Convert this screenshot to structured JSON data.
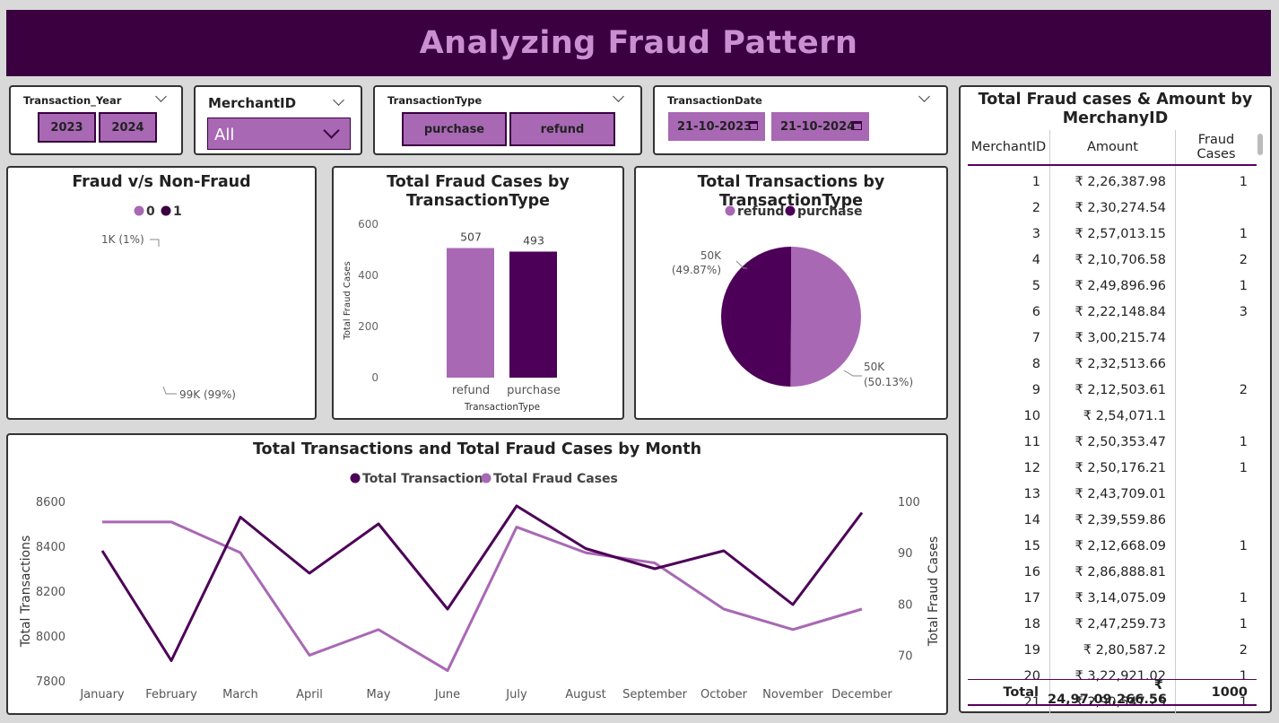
{
  "header": {
    "title": "Analyzing Fraud Pattern"
  },
  "slicers": {
    "year": {
      "title": "Transaction_Year",
      "options": [
        "2023",
        "2024"
      ]
    },
    "merchant": {
      "title": "MerchantID",
      "value": "All"
    },
    "type": {
      "title": "TransactionType",
      "options": [
        "purchase",
        "refund"
      ]
    },
    "date": {
      "title": "TransactionDate",
      "start": "21-10-2023",
      "end": "21-10-2024"
    }
  },
  "colors": {
    "light": "#a868b4",
    "dark": "#4d0058",
    "header_bg": "#3a0040",
    "title": "#c98fd0"
  },
  "chart_data": [
    {
      "id": "fraud_nonfraud",
      "type": "pie",
      "title": "Fraud v/s Non-Fraud",
      "legend": [
        "0",
        "1"
      ],
      "slices": [
        {
          "name": "0",
          "value": 99000,
          "label": "99K (99%)",
          "color": "#a868b4"
        },
        {
          "name": "1",
          "value": 1000,
          "label": "1K (1%)",
          "color": "#3a0040"
        }
      ]
    },
    {
      "id": "fraud_by_type",
      "type": "bar",
      "title": "Total Fraud Cases by TransactionType",
      "xlabel": "TransactionType",
      "ylabel": "Total Fraud Cases",
      "categories": [
        "refund",
        "purchase"
      ],
      "values": [
        507,
        493
      ],
      "ylim": [
        0,
        600
      ],
      "yticks": [
        "0",
        "200",
        "400",
        "600"
      ],
      "colors": [
        "#a868b4",
        "#4d0058"
      ]
    },
    {
      "id": "tx_by_type",
      "type": "pie",
      "title": "Total Transactions by TransactionType",
      "legend": [
        "refund",
        "purchase"
      ],
      "slices": [
        {
          "name": "refund",
          "value": 50.13,
          "label_value": "50K",
          "label_pct": "(50.13%)",
          "color": "#a868b4"
        },
        {
          "name": "purchase",
          "value": 49.87,
          "label_value": "50K",
          "label_pct": "(49.87%)",
          "color": "#4d0058"
        }
      ]
    },
    {
      "id": "monthly",
      "type": "line",
      "title": "Total Transactions and Total Fraud Cases by Month",
      "categories": [
        "January",
        "February",
        "March",
        "April",
        "May",
        "June",
        "July",
        "August",
        "September",
        "October",
        "November",
        "December"
      ],
      "series": [
        {
          "name": "Total Transactions",
          "axis": "left",
          "color": "#4d0058",
          "values": [
            8380,
            7890,
            8530,
            8280,
            8500,
            8120,
            8580,
            8390,
            8300,
            8380,
            8140,
            8550
          ]
        },
        {
          "name": "Total Fraud Cases",
          "axis": "right",
          "color": "#a868b4",
          "values": [
            96,
            96,
            90,
            70,
            75,
            67,
            95,
            90,
            88,
            79,
            75,
            79
          ]
        }
      ],
      "ylabel_left": "Total Transactions",
      "ylabel_right": "Total Fraud Cases",
      "ylim_left": [
        7800,
        8600
      ],
      "yticks_left": [
        "7800",
        "8000",
        "8200",
        "8400",
        "8600"
      ],
      "ylim_right": [
        65,
        100
      ],
      "yticks_right": [
        "70",
        "80",
        "90",
        "100"
      ]
    }
  ],
  "table": {
    "title": "Total Fraud cases & Amount by MerchanyID",
    "columns": [
      "MerchantID",
      "Amount",
      "Fraud Cases"
    ],
    "rows": [
      [
        "1",
        "₹ 2,26,387.98",
        "1"
      ],
      [
        "2",
        "₹ 2,30,274.54",
        ""
      ],
      [
        "3",
        "₹ 2,57,013.15",
        "1"
      ],
      [
        "4",
        "₹ 2,10,706.58",
        "2"
      ],
      [
        "5",
        "₹ 2,49,896.96",
        "1"
      ],
      [
        "6",
        "₹ 2,22,148.84",
        "3"
      ],
      [
        "7",
        "₹ 3,00,215.74",
        ""
      ],
      [
        "8",
        "₹ 2,32,513.66",
        ""
      ],
      [
        "9",
        "₹ 2,12,503.61",
        "2"
      ],
      [
        "10",
        "₹ 2,54,071.1",
        ""
      ],
      [
        "11",
        "₹ 2,50,353.47",
        "1"
      ],
      [
        "12",
        "₹ 2,50,176.21",
        "1"
      ],
      [
        "13",
        "₹ 2,43,709.01",
        ""
      ],
      [
        "14",
        "₹ 2,39,559.86",
        ""
      ],
      [
        "15",
        "₹ 2,12,668.09",
        "1"
      ],
      [
        "16",
        "₹ 2,86,888.81",
        ""
      ],
      [
        "17",
        "₹ 3,14,075.09",
        "1"
      ],
      [
        "18",
        "₹ 2,47,259.73",
        "1"
      ],
      [
        "19",
        "₹ 2,80,587.2",
        "2"
      ],
      [
        "20",
        "₹ 3,22,921.02",
        "1"
      ],
      [
        "21",
        "₹ 2,90,547.25",
        "1"
      ]
    ],
    "total": {
      "label": "Total",
      "amount": "₹ 24,97,09,266.56",
      "cases": "1000"
    }
  }
}
